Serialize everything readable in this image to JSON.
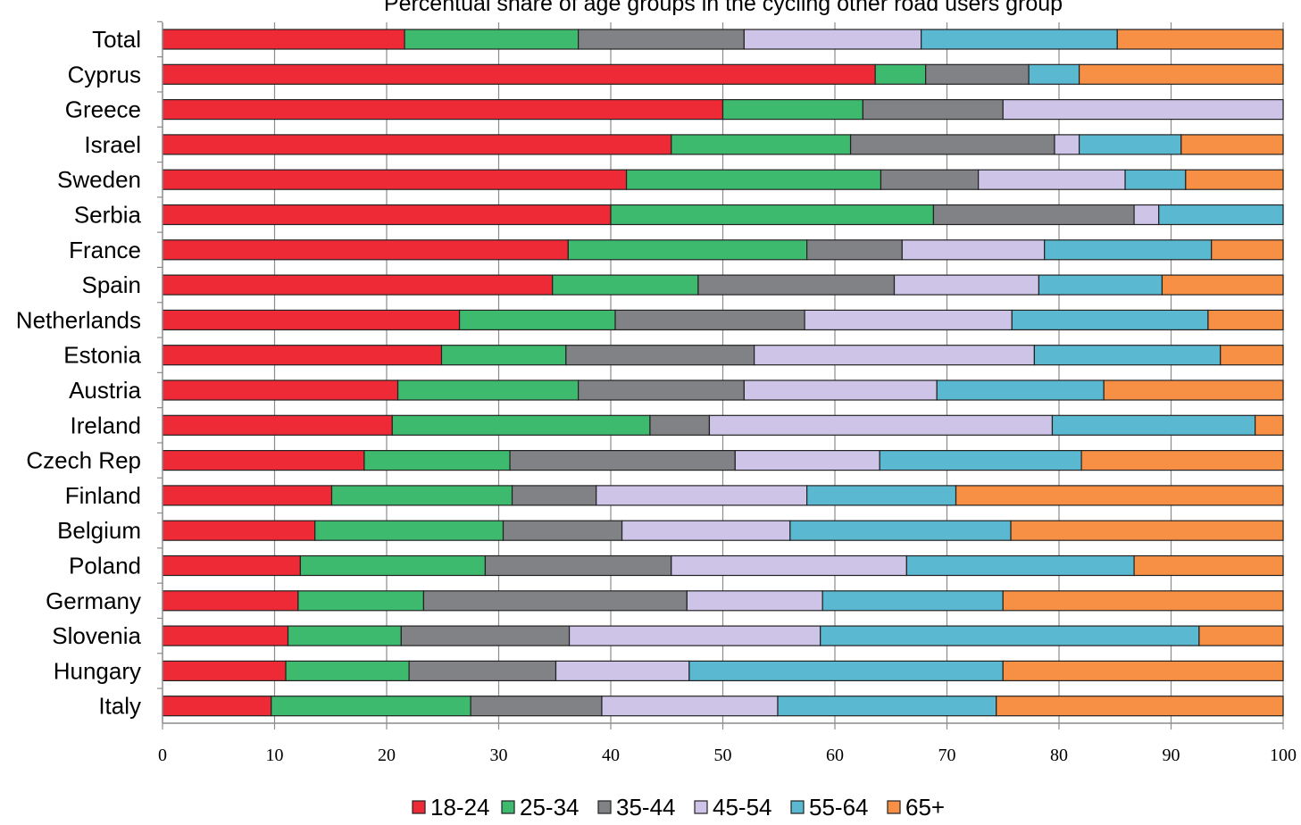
{
  "chart_data": {
    "type": "bar",
    "orientation": "horizontal",
    "stacked": true,
    "title": "Percentual share of age groups in the cycling other road users group",
    "xlim": [
      0,
      100
    ],
    "xticks": [
      0,
      10,
      20,
      30,
      40,
      50,
      60,
      70,
      80,
      90,
      100
    ],
    "grid": true,
    "legend_position": "bottom",
    "categories": [
      "Total",
      "Cyprus",
      "Greece",
      "Israel",
      "Sweden",
      "Serbia",
      "France",
      "Spain",
      "Netherlands",
      "Estonia",
      "Austria",
      "Ireland",
      "Czech Rep",
      "Finland",
      "Belgium",
      "Poland",
      "Germany",
      "Slovenia",
      "Hungary",
      "Italy"
    ],
    "series": [
      {
        "name": "18-24",
        "color": "#ee2a36",
        "values": [
          21.6,
          63.6,
          50,
          45.4,
          41.4,
          40,
          36.2,
          34.8,
          26.5,
          24.9,
          21,
          20.5,
          18,
          15.1,
          13.6,
          12.3,
          12.1,
          11.2,
          11,
          9.7
        ]
      },
      {
        "name": "25-34",
        "color": "#3dba6e",
        "values": [
          15.5,
          4.5,
          12.5,
          16,
          22.7,
          28.8,
          21.3,
          13,
          13.9,
          11.1,
          16.1,
          23,
          13,
          16.1,
          16.8,
          16.5,
          11.2,
          10.1,
          11,
          17.8
        ]
      },
      {
        "name": "35-44",
        "color": "#808285",
        "values": [
          14.8,
          9.2,
          12.5,
          18.2,
          8.7,
          17.9,
          8.5,
          17.5,
          16.9,
          16.8,
          14.8,
          5.3,
          20.1,
          7.5,
          10.6,
          16.6,
          23.5,
          15,
          13.1,
          11.7
        ]
      },
      {
        "name": "45-54",
        "color": "#cdc4e8",
        "values": [
          15.8,
          0,
          25,
          2.2,
          13.1,
          2.2,
          12.7,
          12.9,
          18.5,
          25,
          17.2,
          30.6,
          12.9,
          18.8,
          15,
          21,
          12.1,
          22.4,
          11.9,
          15.7
        ]
      },
      {
        "name": "55-64",
        "color": "#5ab8d0",
        "values": [
          17.5,
          4.5,
          0,
          9.1,
          5.4,
          11.1,
          14.9,
          11,
          17.5,
          16.6,
          14.9,
          18.1,
          18,
          13.3,
          19.7,
          20.3,
          16.1,
          33.8,
          28,
          19.5
        ]
      },
      {
        "name": "65+",
        "color": "#f78f45",
        "values": [
          14.8,
          18.2,
          0,
          9.1,
          8.7,
          0,
          6.4,
          10.8,
          6.7,
          5.6,
          16,
          2.5,
          18,
          29.2,
          24.3,
          13.3,
          25,
          7.5,
          25,
          25.6
        ]
      }
    ]
  }
}
